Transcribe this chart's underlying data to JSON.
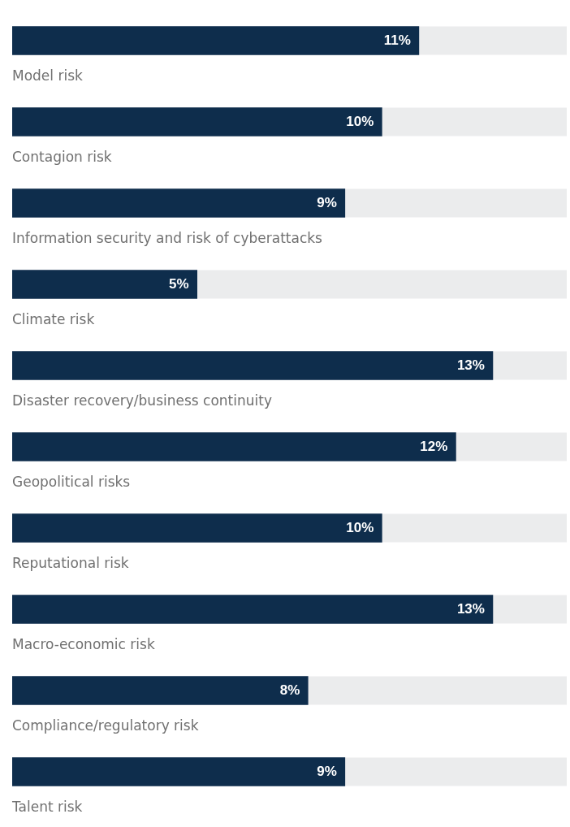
{
  "chart_data": {
    "type": "bar",
    "orientation": "horizontal",
    "categories": [
      "Model risk",
      "Contagion risk",
      "Information security and risk of cyberattacks",
      "Climate risk",
      "Disaster recovery/business continuity",
      "Geopolitical risks",
      "Reputational risk",
      "Macro-economic risk",
      "Compliance/regulatory risk",
      "Talent risk"
    ],
    "values": [
      11,
      10,
      9,
      5,
      13,
      12,
      10,
      13,
      8,
      9
    ],
    "value_labels": [
      "11%",
      "10%",
      "9%",
      "5%",
      "13%",
      "12%",
      "10%",
      "13%",
      "8%",
      "9%"
    ],
    "color": "#0e2d4c",
    "xlim": [
      0,
      15
    ],
    "tick_labels": false
  }
}
